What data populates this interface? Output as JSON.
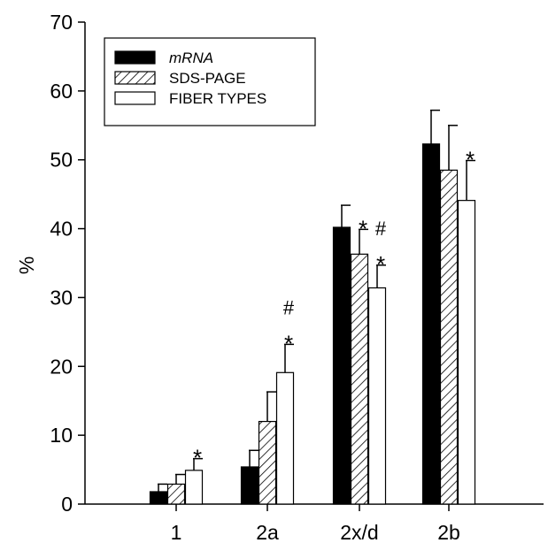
{
  "chart_data": {
    "type": "bar",
    "title": "",
    "xlabel": "",
    "ylabel": "%",
    "ylim": [
      0,
      70
    ],
    "yticks": [
      0,
      10,
      20,
      30,
      40,
      50,
      60,
      70
    ],
    "categories": [
      "1",
      "2a",
      "2x/d",
      "2b"
    ],
    "series": [
      {
        "name": "mRNA",
        "fill": "solid-black",
        "values": [
          1.8,
          5.4,
          40.2,
          52.3
        ],
        "errors": [
          1.1,
          2.4,
          3.2,
          4.9
        ]
      },
      {
        "name": "SDS-PAGE",
        "fill": "hatched",
        "values": [
          2.9,
          12.0,
          36.3,
          48.5
        ],
        "errors": [
          1.4,
          4.3,
          3.6,
          6.5
        ]
      },
      {
        "name": "FIBER TYPES",
        "fill": "white",
        "values": [
          4.9,
          19.1,
          31.4,
          44.1
        ],
        "errors": [
          1.7,
          4.1,
          3.3,
          5.8
        ]
      }
    ],
    "annotations": [
      {
        "category": "1",
        "series": "FIBER TYPES",
        "symbols": [
          "*"
        ]
      },
      {
        "category": "2a",
        "series": "FIBER TYPES",
        "symbols": [
          "#",
          "*"
        ]
      },
      {
        "category": "2x/d",
        "series": "SDS-PAGE",
        "symbols": [
          "*"
        ]
      },
      {
        "category": "2x/d",
        "series": "FIBER TYPES",
        "symbols": [
          "#",
          "*"
        ]
      },
      {
        "category": "2b",
        "series": "FIBER TYPES",
        "symbols": [
          "*"
        ]
      }
    ],
    "legend": {
      "placement": "top-left"
    },
    "grid": false
  }
}
